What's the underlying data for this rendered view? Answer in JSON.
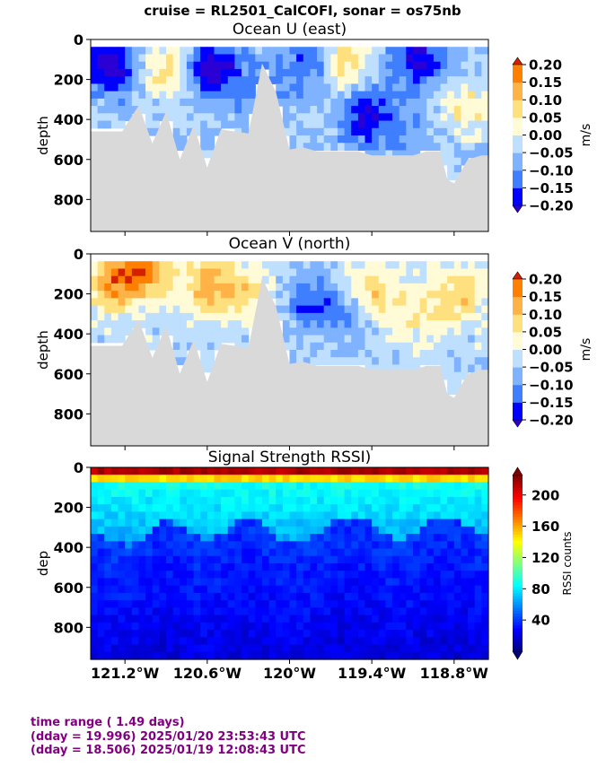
{
  "suptitle": "cruise = RL2501_CalCOFI,  sonar = os75nb",
  "colors": {
    "land": "#d9d9d9",
    "footer_text": "#800080",
    "vel_levels": [
      "#2a00d5",
      "#0000ff",
      "#3f7fff",
      "#7fb2ff",
      "#bfdfff",
      "#fffbd7",
      "#ffe07f",
      "#ffb347",
      "#ff7f00",
      "#d32100"
    ],
    "rssi_cmap": [
      "#00007f",
      "#0000ff",
      "#007fff",
      "#00ffff",
      "#7fff7f",
      "#ffff00",
      "#ff7f00",
      "#ff0000",
      "#7f0000"
    ]
  },
  "chart_data": [
    {
      "type": "heatmap",
      "title": "Ocean U (east)",
      "ylabel": "depth",
      "ylim": [
        960,
        0
      ],
      "yticks": [
        0,
        200,
        400,
        600,
        800
      ],
      "xlim": [
        -121.45,
        -118.55
      ],
      "xticks": [
        -121.2,
        -120.6,
        -120.0,
        -119.4,
        -118.8
      ],
      "xticklabels": [],
      "colorbar": {
        "label": "m/s",
        "levels": [
          -0.2,
          -0.15,
          -0.1,
          -0.05,
          0.0,
          0.05,
          0.1,
          0.15,
          0.2
        ],
        "ticklabels": [
          "0.20",
          "0.15",
          "0.10",
          "0.05",
          "0.00",
          "−0.05",
          "−0.10",
          "−0.15",
          "−0.20"
        ],
        "extend": "both"
      },
      "bottom_depth_profile": {
        "x": [
          -121.45,
          -121.22,
          -121.1,
          -121.0,
          -120.9,
          -120.8,
          -120.7,
          -120.6,
          -120.5,
          -120.4,
          -120.3,
          -120.2,
          -120.1,
          -120.0,
          -119.9,
          -119.8,
          -119.7,
          -119.6,
          -119.5,
          -119.4,
          -119.3,
          -119.2,
          -119.1,
          -119.0,
          -118.95,
          -118.9,
          -118.85,
          -118.8,
          -118.7,
          -118.6,
          -118.55
        ],
        "depth": [
          460,
          460,
          330,
          520,
          360,
          600,
          430,
          640,
          450,
          460,
          470,
          120,
          260,
          550,
          540,
          560,
          560,
          560,
          560,
          580,
          580,
          580,
          580,
          560,
          560,
          560,
          700,
          720,
          600,
          580,
          580
        ]
      },
      "value_field": {
        "base": 0.0,
        "anomalies": [
          {
            "x": -121.3,
            "z": 120,
            "v": -0.18
          },
          {
            "x": -120.9,
            "z": 150,
            "v": 0.12
          },
          {
            "x": -120.55,
            "z": 150,
            "v": -0.2
          },
          {
            "x": -120.2,
            "z": 250,
            "v": -0.08
          },
          {
            "x": -119.85,
            "z": 120,
            "v": -0.1
          },
          {
            "x": -119.6,
            "z": 110,
            "v": 0.14
          },
          {
            "x": -119.45,
            "z": 380,
            "v": -0.15
          },
          {
            "x": -119.05,
            "z": 90,
            "v": -0.16
          },
          {
            "x": -118.7,
            "z": 350,
            "v": 0.1
          },
          {
            "x": -119.2,
            "z": 420,
            "v": -0.06
          }
        ]
      }
    },
    {
      "type": "heatmap",
      "title": "Ocean V (north)",
      "ylabel": "depth",
      "ylim": [
        960,
        0
      ],
      "yticks": [
        0,
        200,
        400,
        600,
        800
      ],
      "xlim": [
        -121.45,
        -118.55
      ],
      "xticks": [
        -121.2,
        -120.6,
        -120.0,
        -119.4,
        -118.8
      ],
      "xticklabels": [],
      "colorbar": {
        "label": "m/s",
        "levels": [
          -0.2,
          -0.15,
          -0.1,
          -0.05,
          0.0,
          0.05,
          0.1,
          0.15,
          0.2
        ],
        "ticklabels": [
          "0.20",
          "0.15",
          "0.10",
          "0.05",
          "0.00",
          "−0.05",
          "−0.10",
          "−0.15",
          "−0.20"
        ],
        "extend": "both"
      },
      "bottom_depth_profile": {
        "x": [
          -121.45,
          -121.22,
          -121.1,
          -121.0,
          -120.9,
          -120.8,
          -120.7,
          -120.6,
          -120.5,
          -120.4,
          -120.3,
          -120.2,
          -120.1,
          -120.0,
          -119.9,
          -119.8,
          -119.7,
          -119.6,
          -119.5,
          -119.4,
          -119.3,
          -119.2,
          -119.1,
          -119.0,
          -118.95,
          -118.9,
          -118.85,
          -118.8,
          -118.7,
          -118.6,
          -118.55
        ],
        "depth": [
          460,
          460,
          330,
          520,
          360,
          600,
          430,
          640,
          450,
          460,
          470,
          120,
          260,
          550,
          540,
          560,
          560,
          560,
          560,
          580,
          580,
          580,
          580,
          560,
          560,
          560,
          700,
          720,
          600,
          580,
          580
        ]
      },
      "value_field": {
        "base": 0.02,
        "anomalies": [
          {
            "x": -121.3,
            "z": 150,
            "v": 0.18
          },
          {
            "x": -121.05,
            "z": 80,
            "v": 0.2
          },
          {
            "x": -120.6,
            "z": 150,
            "v": 0.16
          },
          {
            "x": -120.3,
            "z": 200,
            "v": 0.1
          },
          {
            "x": -119.85,
            "z": 250,
            "v": -0.12
          },
          {
            "x": -119.55,
            "z": 300,
            "v": -0.1
          },
          {
            "x": -119.4,
            "z": 200,
            "v": 0.14
          },
          {
            "x": -119.05,
            "z": 300,
            "v": 0.08
          },
          {
            "x": -118.75,
            "z": 200,
            "v": 0.12
          }
        ]
      }
    },
    {
      "type": "heatmap",
      "title": "Signal Strength RSSI)",
      "ylabel": "dep",
      "ylim": [
        960,
        0
      ],
      "yticks": [
        0,
        200,
        400,
        600,
        800
      ],
      "xlim": [
        -121.45,
        -118.55
      ],
      "xticks": [
        -121.2,
        -120.6,
        -120.0,
        -119.4,
        -118.8
      ],
      "xticklabels": [
        "121.2°W",
        "120.6°W",
        "120°W",
        "119.4°W",
        "118.8°W"
      ],
      "colorbar": {
        "label": "RSSI counts",
        "range": [
          0,
          225
        ],
        "ticks": [
          40,
          80,
          120,
          160,
          200
        ],
        "extend": "both"
      },
      "value_field": {
        "surface": 200,
        "deep": 30
      }
    }
  ],
  "footer": {
    "line1": "time range ( 1.49 days)",
    "line2": "(dday = 19.996) 2025/01/20 23:53:43 UTC",
    "line3": "(dday = 18.506) 2025/01/19 12:08:43 UTC"
  }
}
